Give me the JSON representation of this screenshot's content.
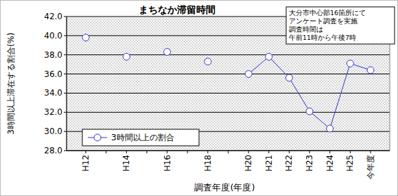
{
  "chart_data": {
    "type": "line",
    "title": "まちなか滞留時間",
    "x_label": "調査年度(年度)",
    "y_label": "3時間以上滞在する割合(%)",
    "annotation": [
      "大分市中心部16箇所にて",
      "アンケート調査を実施",
      "調査時間は",
      "午前11時から午後7時"
    ],
    "categories": [
      "H12",
      null,
      "H14",
      null,
      "H16",
      null,
      "H18",
      null,
      "H20",
      "H21",
      "H22",
      "H23",
      "H24",
      "H25",
      "今年度"
    ],
    "series": [
      {
        "name": "3時間以上の割合",
        "color": "#3333cc",
        "marker": "circle",
        "line_style": "solid",
        "values": [
          39.8,
          null,
          37.8,
          null,
          38.3,
          null,
          37.3,
          null,
          36.0,
          37.8,
          35.6,
          32.1,
          30.3,
          37.1,
          36.4
        ]
      }
    ],
    "ylim": [
      28,
      42
    ],
    "yticks": [
      {
        "value": 28,
        "label": "28.0"
      },
      {
        "value": 30,
        "label": "30.0"
      },
      {
        "value": 32,
        "label": "32.0"
      },
      {
        "value": 34,
        "label": "34.0"
      },
      {
        "value": 36,
        "label": "36.0"
      },
      {
        "value": 38,
        "label": "38.0"
      },
      {
        "value": 40,
        "label": "40.0"
      },
      {
        "value": 42,
        "label": "42.0"
      }
    ],
    "grid": true,
    "legend": "lower-left"
  }
}
